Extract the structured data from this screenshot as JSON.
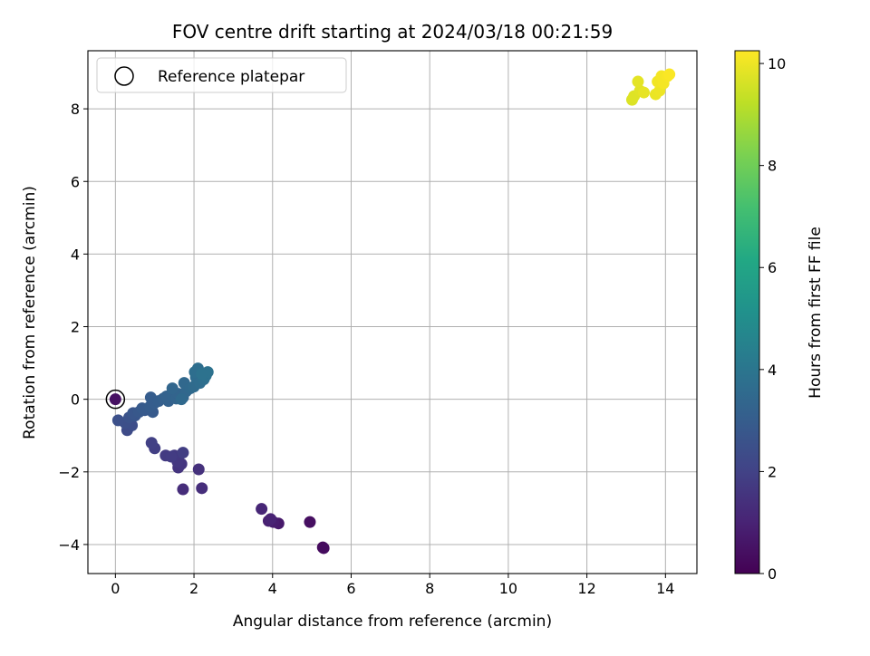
{
  "chart_data": {
    "type": "scatter",
    "title": "FOV centre drift starting at 2024/03/18 00:21:59",
    "xlabel": "Angular distance from reference (arcmin)",
    "ylabel": "Rotation from reference (arcmin)",
    "xlim": [
      -0.7,
      14.8
    ],
    "ylim": [
      -4.8,
      9.6
    ],
    "xticks": [
      0,
      2,
      4,
      6,
      8,
      10,
      12,
      14
    ],
    "yticks": [
      -4,
      -2,
      0,
      2,
      4,
      6,
      8
    ],
    "xtick_labels": [
      "0",
      "2",
      "4",
      "6",
      "8",
      "10",
      "12",
      "14"
    ],
    "ytick_labels": [
      "−4",
      "−2",
      "0",
      "2",
      "4",
      "6",
      "8"
    ],
    "grid": true,
    "legend": {
      "placement": "top-left",
      "entries": [
        "Reference platepar"
      ]
    },
    "colorbar": {
      "label": "Hours from first FF file",
      "colormap": "viridis",
      "range": [
        0,
        10.25
      ],
      "ticks": [
        0,
        2,
        4,
        6,
        8,
        10
      ],
      "tick_labels": [
        "0",
        "2",
        "4",
        "6",
        "8",
        "10"
      ]
    },
    "reference_point": {
      "x": 0,
      "y": 0
    },
    "points": [
      {
        "x": 5.28,
        "y": -4.08,
        "hours": 0.25
      },
      {
        "x": 5.3,
        "y": -4.1,
        "hours": 0.3
      },
      {
        "x": 4.95,
        "y": -3.38,
        "hours": 0.4
      },
      {
        "x": 0.0,
        "y": 0.0,
        "hours": 0.45
      },
      {
        "x": 4.15,
        "y": -3.42,
        "hours": 0.7
      },
      {
        "x": 4.02,
        "y": -3.38,
        "hours": 0.8
      },
      {
        "x": 3.9,
        "y": -3.35,
        "hours": 0.9
      },
      {
        "x": 3.95,
        "y": -3.3,
        "hours": 1.0
      },
      {
        "x": 3.72,
        "y": -3.02,
        "hours": 1.1
      },
      {
        "x": 1.72,
        "y": -2.48,
        "hours": 1.3
      },
      {
        "x": 2.2,
        "y": -2.45,
        "hours": 1.35
      },
      {
        "x": 2.12,
        "y": -1.93,
        "hours": 1.45
      },
      {
        "x": 1.6,
        "y": -1.88,
        "hours": 1.55
      },
      {
        "x": 1.68,
        "y": -1.78,
        "hours": 1.6
      },
      {
        "x": 1.58,
        "y": -1.72,
        "hours": 1.65
      },
      {
        "x": 1.5,
        "y": -1.55,
        "hours": 1.7
      },
      {
        "x": 1.28,
        "y": -1.55,
        "hours": 1.75
      },
      {
        "x": 1.42,
        "y": -1.58,
        "hours": 1.8
      },
      {
        "x": 1.72,
        "y": -1.47,
        "hours": 1.85
      },
      {
        "x": 1.0,
        "y": -1.35,
        "hours": 1.9
      },
      {
        "x": 0.92,
        "y": -1.2,
        "hours": 1.95
      },
      {
        "x": 0.3,
        "y": -0.85,
        "hours": 2.3
      },
      {
        "x": 0.42,
        "y": -0.72,
        "hours": 2.4
      },
      {
        "x": 0.25,
        "y": -0.65,
        "hours": 2.45
      },
      {
        "x": 0.07,
        "y": -0.58,
        "hours": 2.5
      },
      {
        "x": 0.35,
        "y": -0.5,
        "hours": 2.6
      },
      {
        "x": 0.5,
        "y": -0.45,
        "hours": 2.7
      },
      {
        "x": 0.45,
        "y": -0.38,
        "hours": 2.75
      },
      {
        "x": 0.6,
        "y": -0.35,
        "hours": 2.8
      },
      {
        "x": 0.75,
        "y": -0.3,
        "hours": 2.85
      },
      {
        "x": 0.68,
        "y": -0.25,
        "hours": 2.9
      },
      {
        "x": 0.95,
        "y": -0.35,
        "hours": 2.9
      },
      {
        "x": 0.88,
        "y": -0.2,
        "hours": 2.95
      },
      {
        "x": 1.0,
        "y": -0.1,
        "hours": 3.0
      },
      {
        "x": 0.9,
        "y": 0.05,
        "hours": 3.0
      },
      {
        "x": 1.1,
        "y": -0.05,
        "hours": 3.05
      },
      {
        "x": 1.22,
        "y": 0.02,
        "hours": 3.1
      },
      {
        "x": 1.35,
        "y": -0.05,
        "hours": 3.15
      },
      {
        "x": 1.3,
        "y": 0.08,
        "hours": 3.2
      },
      {
        "x": 1.45,
        "y": 0.1,
        "hours": 3.25
      },
      {
        "x": 1.55,
        "y": 0.02,
        "hours": 3.3
      },
      {
        "x": 1.6,
        "y": 0.15,
        "hours": 3.3
      },
      {
        "x": 1.72,
        "y": 0.05,
        "hours": 3.35
      },
      {
        "x": 1.45,
        "y": 0.3,
        "hours": 3.35
      },
      {
        "x": 1.8,
        "y": 0.22,
        "hours": 3.4
      },
      {
        "x": 1.75,
        "y": 0.45,
        "hours": 3.45
      },
      {
        "x": 1.9,
        "y": 0.3,
        "hours": 3.5
      },
      {
        "x": 1.68,
        "y": 0.0,
        "hours": 3.5
      },
      {
        "x": 2.0,
        "y": 0.35,
        "hours": 3.55
      },
      {
        "x": 2.05,
        "y": 0.6,
        "hours": 3.6
      },
      {
        "x": 2.15,
        "y": 0.45,
        "hours": 3.65
      },
      {
        "x": 2.1,
        "y": 0.85,
        "hours": 3.7
      },
      {
        "x": 2.02,
        "y": 0.75,
        "hours": 3.7
      },
      {
        "x": 2.25,
        "y": 0.55,
        "hours": 3.75
      },
      {
        "x": 2.3,
        "y": 0.65,
        "hours": 3.8
      },
      {
        "x": 2.35,
        "y": 0.75,
        "hours": 3.85
      },
      {
        "x": 2.2,
        "y": 0.7,
        "hours": 3.85
      },
      {
        "x": 13.15,
        "y": 8.25,
        "hours": 9.7
      },
      {
        "x": 13.2,
        "y": 8.35,
        "hours": 9.75
      },
      {
        "x": 13.35,
        "y": 8.5,
        "hours": 9.8
      },
      {
        "x": 13.3,
        "y": 8.75,
        "hours": 9.85
      },
      {
        "x": 13.45,
        "y": 8.45,
        "hours": 9.9
      },
      {
        "x": 13.75,
        "y": 8.4,
        "hours": 9.95
      },
      {
        "x": 13.85,
        "y": 8.5,
        "hours": 10.0
      },
      {
        "x": 13.8,
        "y": 8.75,
        "hours": 10.05
      },
      {
        "x": 13.9,
        "y": 8.9,
        "hours": 10.1
      },
      {
        "x": 13.95,
        "y": 8.7,
        "hours": 10.1
      },
      {
        "x": 14.05,
        "y": 8.9,
        "hours": 10.15
      },
      {
        "x": 14.1,
        "y": 8.95,
        "hours": 10.2
      }
    ]
  },
  "colors": {
    "grid": "#b0b0b0",
    "axes": "#000000",
    "reference_marker_edge": "#000000",
    "legend_frame": "#cccccc"
  }
}
